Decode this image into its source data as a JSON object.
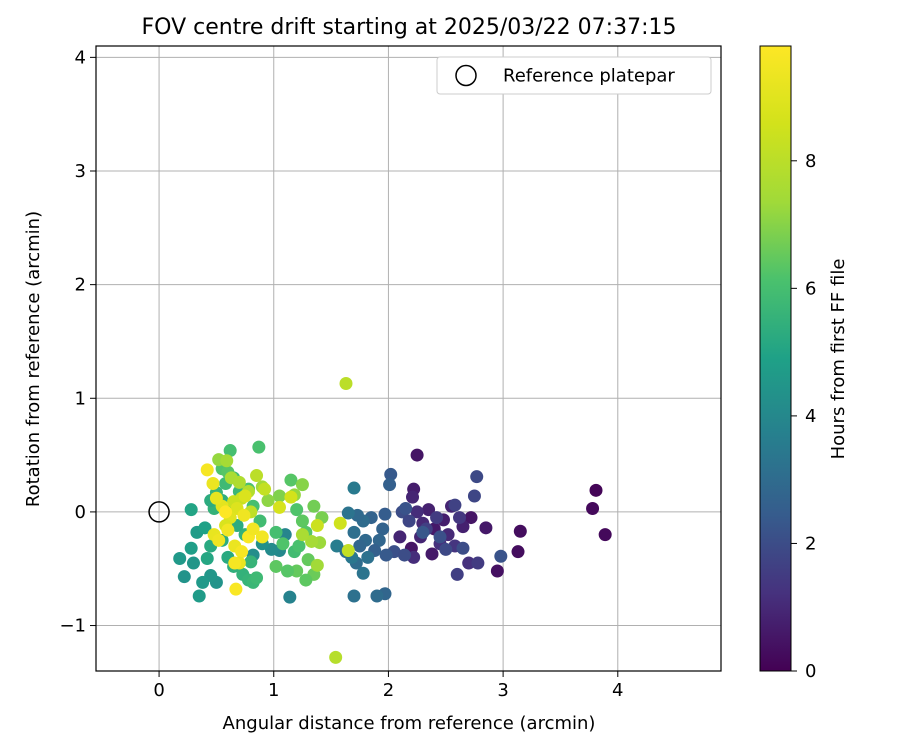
{
  "chart_data": {
    "type": "scatter",
    "title": "FOV centre drift starting at 2025/03/22 07:37:15",
    "xlabel": "Angular distance from reference (arcmin)",
    "ylabel": "Rotation from reference (arcmin)",
    "xlim": [
      -0.55,
      4.9
    ],
    "ylim": [
      -1.4,
      4.1
    ],
    "xticks": [
      0,
      1,
      2,
      3,
      4
    ],
    "yticks": [
      -1,
      0,
      1,
      2,
      3,
      4
    ],
    "xtick_labels": [
      "0",
      "1",
      "2",
      "3",
      "4"
    ],
    "ytick_labels": [
      "−1",
      "0",
      "1",
      "2",
      "3",
      "4"
    ],
    "grid": true,
    "legend": {
      "position": "top-right",
      "entries": [
        {
          "label": "Reference platepar",
          "marker": "open-circle",
          "x": 0,
          "y": 0
        }
      ]
    },
    "colorbar": {
      "label": "Hours from first FF file",
      "colormap": "viridis",
      "range": [
        0,
        9.8
      ],
      "ticks": [
        0,
        2,
        4,
        6,
        8
      ],
      "tick_labels": [
        "0",
        "2",
        "4",
        "6",
        "8"
      ]
    },
    "series": [
      {
        "points": [
          {
            "x": 3.81,
            "y": 0.19,
            "h": 0.1
          },
          {
            "x": 3.78,
            "y": 0.03,
            "h": 0.2
          },
          {
            "x": 3.89,
            "y": -0.2,
            "h": 0.2
          },
          {
            "x": 3.15,
            "y": -0.17,
            "h": 0.3
          },
          {
            "x": 3.13,
            "y": -0.35,
            "h": 0.3
          },
          {
            "x": 2.95,
            "y": -0.52,
            "h": 0.4
          },
          {
            "x": 2.25,
            "y": 0.5,
            "h": 0.5
          },
          {
            "x": 2.22,
            "y": 0.2,
            "h": 0.7
          },
          {
            "x": 2.21,
            "y": 0.13,
            "h": 0.9
          },
          {
            "x": 2.85,
            "y": -0.14,
            "h": 0.6
          },
          {
            "x": 2.72,
            "y": -0.05,
            "h": 0.5
          },
          {
            "x": 2.65,
            "y": -0.13,
            "h": 0.8
          },
          {
            "x": 2.55,
            "y": 0.05,
            "h": 0.9
          },
          {
            "x": 2.48,
            "y": -0.07,
            "h": 0.7
          },
          {
            "x": 2.4,
            "y": -0.15,
            "h": 0.6
          },
          {
            "x": 2.35,
            "y": 0.02,
            "h": 0.8
          },
          {
            "x": 2.3,
            "y": -0.1,
            "h": 1.0
          },
          {
            "x": 2.28,
            "y": -0.22,
            "h": 0.9
          },
          {
            "x": 2.25,
            "y": 0.0,
            "h": 1.1
          },
          {
            "x": 2.2,
            "y": -0.32,
            "h": 0.5
          },
          {
            "x": 2.38,
            "y": -0.37,
            "h": 0.6
          },
          {
            "x": 2.45,
            "y": -0.28,
            "h": 1.2
          },
          {
            "x": 2.52,
            "y": -0.2,
            "h": 1.0
          },
          {
            "x": 2.58,
            "y": -0.3,
            "h": 1.3
          },
          {
            "x": 2.62,
            "y": -0.05,
            "h": 1.4
          },
          {
            "x": 2.7,
            "y": -0.45,
            "h": 1.2
          },
          {
            "x": 2.78,
            "y": -0.45,
            "h": 1.5
          },
          {
            "x": 2.6,
            "y": -0.55,
            "h": 1.6
          },
          {
            "x": 2.75,
            "y": 0.14,
            "h": 1.8
          },
          {
            "x": 2.77,
            "y": 0.31,
            "h": 1.9
          },
          {
            "x": 2.58,
            "y": 0.06,
            "h": 1.7
          },
          {
            "x": 2.42,
            "y": -0.05,
            "h": 1.5
          },
          {
            "x": 2.33,
            "y": -0.15,
            "h": 1.6
          },
          {
            "x": 2.22,
            "y": -0.4,
            "h": 1.1
          },
          {
            "x": 2.1,
            "y": -0.22,
            "h": 0.9
          },
          {
            "x": 2.12,
            "y": 0.0,
            "h": 2.0
          },
          {
            "x": 2.15,
            "y": 0.03,
            "h": 2.2
          },
          {
            "x": 2.18,
            "y": -0.08,
            "h": 1.8
          },
          {
            "x": 2.05,
            "y": -0.35,
            "h": 2.1
          },
          {
            "x": 2.14,
            "y": -0.38,
            "h": 2.0
          },
          {
            "x": 2.3,
            "y": -0.18,
            "h": 2.3
          },
          {
            "x": 2.45,
            "y": -0.22,
            "h": 2.1
          },
          {
            "x": 2.5,
            "y": -0.33,
            "h": 1.9
          },
          {
            "x": 2.65,
            "y": -0.32,
            "h": 2.0
          },
          {
            "x": 2.98,
            "y": -0.39,
            "h": 2.2
          },
          {
            "x": 2.02,
            "y": 0.33,
            "h": 2.4
          },
          {
            "x": 2.01,
            "y": 0.24,
            "h": 2.6
          },
          {
            "x": 1.97,
            "y": -0.02,
            "h": 2.5
          },
          {
            "x": 1.95,
            "y": -0.15,
            "h": 2.7
          },
          {
            "x": 1.92,
            "y": -0.25,
            "h": 2.8
          },
          {
            "x": 1.98,
            "y": -0.38,
            "h": 2.4
          },
          {
            "x": 1.88,
            "y": -0.34,
            "h": 2.6
          },
          {
            "x": 1.8,
            "y": -0.25,
            "h": 2.9
          },
          {
            "x": 1.85,
            "y": -0.05,
            "h": 2.7
          },
          {
            "x": 1.78,
            "y": -0.08,
            "h": 3.0
          },
          {
            "x": 1.73,
            "y": -0.03,
            "h": 2.9
          },
          {
            "x": 1.7,
            "y": -0.18,
            "h": 3.1
          },
          {
            "x": 1.75,
            "y": -0.3,
            "h": 2.8
          },
          {
            "x": 1.82,
            "y": -0.4,
            "h": 3.2
          },
          {
            "x": 1.72,
            "y": -0.45,
            "h": 3.0
          },
          {
            "x": 1.78,
            "y": -0.54,
            "h": 3.3
          },
          {
            "x": 1.68,
            "y": -0.4,
            "h": 3.4
          },
          {
            "x": 1.97,
            "y": -0.72,
            "h": 2.8
          },
          {
            "x": 1.9,
            "y": -0.74,
            "h": 3.0
          },
          {
            "x": 1.7,
            "y": -0.74,
            "h": 3.2
          },
          {
            "x": 1.7,
            "y": 0.21,
            "h": 3.5
          },
          {
            "x": 1.65,
            "y": -0.01,
            "h": 3.3
          },
          {
            "x": 1.55,
            "y": -0.3,
            "h": 3.6
          },
          {
            "x": 1.63,
            "y": -0.35,
            "h": 3.1
          },
          {
            "x": 1.14,
            "y": -0.75,
            "h": 3.8
          },
          {
            "x": 1.1,
            "y": -0.2,
            "h": 3.9
          },
          {
            "x": 1.05,
            "y": -0.34,
            "h": 4.0
          },
          {
            "x": 0.98,
            "y": -0.33,
            "h": 4.1
          },
          {
            "x": 0.9,
            "y": -0.28,
            "h": 4.3
          },
          {
            "x": 0.82,
            "y": -0.38,
            "h": 4.2
          },
          {
            "x": 0.5,
            "y": -0.62,
            "h": 4.4
          },
          {
            "x": 0.45,
            "y": -0.56,
            "h": 4.5
          },
          {
            "x": 0.38,
            "y": -0.62,
            "h": 4.6
          },
          {
            "x": 0.35,
            "y": -0.74,
            "h": 4.7
          },
          {
            "x": 0.3,
            "y": -0.45,
            "h": 4.5
          },
          {
            "x": 0.22,
            "y": -0.57,
            "h": 4.4
          },
          {
            "x": 0.18,
            "y": -0.41,
            "h": 4.6
          },
          {
            "x": 0.28,
            "y": -0.32,
            "h": 4.8
          },
          {
            "x": 0.33,
            "y": -0.18,
            "h": 4.7
          },
          {
            "x": 0.4,
            "y": -0.14,
            "h": 4.9
          },
          {
            "x": 0.28,
            "y": 0.02,
            "h": 5.0
          },
          {
            "x": 0.42,
            "y": -0.41,
            "h": 5.1
          },
          {
            "x": 0.45,
            "y": -0.3,
            "h": 5.2
          },
          {
            "x": 0.55,
            "y": -0.25,
            "h": 5.3
          },
          {
            "x": 0.6,
            "y": -0.4,
            "h": 5.2
          },
          {
            "x": 0.65,
            "y": -0.48,
            "h": 5.4
          },
          {
            "x": 0.73,
            "y": -0.55,
            "h": 5.5
          },
          {
            "x": 0.78,
            "y": -0.6,
            "h": 5.6
          },
          {
            "x": 0.82,
            "y": -0.62,
            "h": 5.7
          },
          {
            "x": 0.85,
            "y": -0.58,
            "h": 5.8
          },
          {
            "x": 0.8,
            "y": -0.44,
            "h": 5.6
          },
          {
            "x": 0.75,
            "y": -0.2,
            "h": 5.5
          },
          {
            "x": 0.68,
            "y": -0.12,
            "h": 5.3
          },
          {
            "x": 0.62,
            "y": 0.02,
            "h": 5.2
          },
          {
            "x": 0.55,
            "y": 0.1,
            "h": 5.4
          },
          {
            "x": 0.5,
            "y": 0.17,
            "h": 5.6
          },
          {
            "x": 0.48,
            "y": 0.03,
            "h": 5.5
          },
          {
            "x": 0.45,
            "y": 0.1,
            "h": 5.3
          },
          {
            "x": 0.58,
            "y": 0.25,
            "h": 5.8
          },
          {
            "x": 0.65,
            "y": 0.3,
            "h": 5.9
          },
          {
            "x": 0.7,
            "y": 0.18,
            "h": 5.7
          },
          {
            "x": 0.62,
            "y": 0.54,
            "h": 6.0
          },
          {
            "x": 0.87,
            "y": 0.57,
            "h": 6.1
          },
          {
            "x": 0.55,
            "y": 0.38,
            "h": 6.2
          },
          {
            "x": 0.6,
            "y": 0.35,
            "h": 6.3
          },
          {
            "x": 0.78,
            "y": 0.2,
            "h": 6.1
          },
          {
            "x": 0.82,
            "y": 0.05,
            "h": 6.0
          },
          {
            "x": 0.88,
            "y": -0.08,
            "h": 5.9
          },
          {
            "x": 1.02,
            "y": -0.18,
            "h": 6.0
          },
          {
            "x": 1.08,
            "y": -0.28,
            "h": 6.2
          },
          {
            "x": 1.18,
            "y": -0.35,
            "h": 5.9
          },
          {
            "x": 1.22,
            "y": -0.3,
            "h": 6.1
          },
          {
            "x": 1.15,
            "y": 0.28,
            "h": 6.3
          },
          {
            "x": 1.2,
            "y": 0.02,
            "h": 6.2
          },
          {
            "x": 1.25,
            "y": -0.08,
            "h": 6.4
          },
          {
            "x": 1.28,
            "y": -0.18,
            "h": 6.3
          },
          {
            "x": 1.3,
            "y": -0.42,
            "h": 6.5
          },
          {
            "x": 1.35,
            "y": -0.55,
            "h": 6.6
          },
          {
            "x": 1.28,
            "y": -0.6,
            "h": 6.4
          },
          {
            "x": 1.2,
            "y": -0.52,
            "h": 6.5
          },
          {
            "x": 1.12,
            "y": -0.52,
            "h": 6.3
          },
          {
            "x": 1.02,
            "y": -0.48,
            "h": 6.4
          },
          {
            "x": 1.35,
            "y": 0.05,
            "h": 6.7
          },
          {
            "x": 1.42,
            "y": -0.05,
            "h": 6.8
          },
          {
            "x": 1.25,
            "y": 0.24,
            "h": 7.0
          },
          {
            "x": 1.18,
            "y": 0.15,
            "h": 7.2
          },
          {
            "x": 1.05,
            "y": 0.14,
            "h": 6.9
          },
          {
            "x": 0.95,
            "y": 0.1,
            "h": 7.1
          },
          {
            "x": 1.4,
            "y": -0.27,
            "h": 7.3
          },
          {
            "x": 1.38,
            "y": -0.47,
            "h": 7.4
          },
          {
            "x": 1.33,
            "y": -0.26,
            "h": 7.5
          },
          {
            "x": 1.25,
            "y": -0.2,
            "h": 7.6
          },
          {
            "x": 0.9,
            "y": 0.22,
            "h": 7.4
          },
          {
            "x": 0.52,
            "y": 0.46,
            "h": 7.2
          },
          {
            "x": 0.59,
            "y": 0.45,
            "h": 7.5
          },
          {
            "x": 0.63,
            "y": 0.3,
            "h": 7.6
          },
          {
            "x": 0.7,
            "y": 0.26,
            "h": 7.7
          },
          {
            "x": 0.78,
            "y": 0.18,
            "h": 7.8
          },
          {
            "x": 0.85,
            "y": 0.32,
            "h": 8.0
          },
          {
            "x": 0.92,
            "y": 0.2,
            "h": 8.2
          },
          {
            "x": 0.8,
            "y": 0.0,
            "h": 8.1
          },
          {
            "x": 0.72,
            "y": 0.12,
            "h": 8.3
          },
          {
            "x": 0.65,
            "y": 0.09,
            "h": 8.4
          },
          {
            "x": 1.63,
            "y": 1.13,
            "h": 8.0
          },
          {
            "x": 1.54,
            "y": -1.28,
            "h": 7.9
          },
          {
            "x": 1.58,
            "y": -0.1,
            "h": 8.5
          },
          {
            "x": 1.65,
            "y": -0.34,
            "h": 8.2
          },
          {
            "x": 1.38,
            "y": -0.12,
            "h": 8.4
          },
          {
            "x": 1.15,
            "y": 0.13,
            "h": 8.6
          },
          {
            "x": 1.05,
            "y": 0.04,
            "h": 8.7
          },
          {
            "x": 0.75,
            "y": 0.14,
            "h": 8.8
          },
          {
            "x": 0.68,
            "y": 0.03,
            "h": 8.9
          },
          {
            "x": 0.62,
            "y": -0.05,
            "h": 9.0
          },
          {
            "x": 0.58,
            "y": -0.12,
            "h": 8.8
          },
          {
            "x": 0.55,
            "y": 0.05,
            "h": 9.1
          },
          {
            "x": 0.5,
            "y": 0.12,
            "h": 9.2
          },
          {
            "x": 0.47,
            "y": 0.25,
            "h": 9.3
          },
          {
            "x": 0.42,
            "y": 0.37,
            "h": 9.6
          },
          {
            "x": 0.48,
            "y": -0.2,
            "h": 9.2
          },
          {
            "x": 0.52,
            "y": -0.25,
            "h": 9.4
          },
          {
            "x": 0.6,
            "y": -0.16,
            "h": 9.5
          },
          {
            "x": 0.66,
            "y": -0.3,
            "h": 9.3
          },
          {
            "x": 0.72,
            "y": -0.35,
            "h": 9.6
          },
          {
            "x": 0.78,
            "y": -0.22,
            "h": 9.7
          },
          {
            "x": 0.82,
            "y": -0.15,
            "h": 9.5
          },
          {
            "x": 0.74,
            "y": -0.03,
            "h": 9.4
          },
          {
            "x": 0.7,
            "y": -0.45,
            "h": 9.3
          },
          {
            "x": 0.66,
            "y": -0.45,
            "h": 9.6
          },
          {
            "x": 0.67,
            "y": -0.68,
            "h": 9.7
          },
          {
            "x": 0.9,
            "y": -0.22,
            "h": 9.5
          },
          {
            "x": 0.58,
            "y": 0.0,
            "h": 9.8
          }
        ]
      }
    ]
  }
}
